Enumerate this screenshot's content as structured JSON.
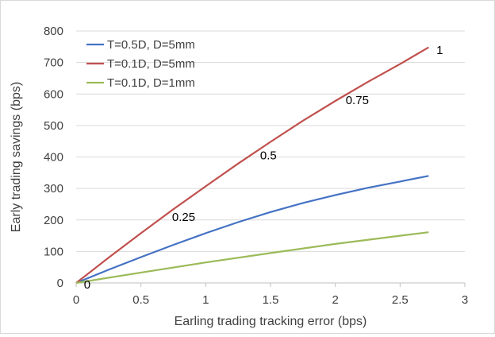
{
  "chart_data": {
    "type": "line",
    "title": "",
    "xlabel": "Earling trading tracking error (bps)",
    "ylabel": "Early trading savings (bps)",
    "xlim": [
      0,
      3
    ],
    "ylim": [
      0,
      800
    ],
    "xticks": [
      0,
      0.5,
      1,
      1.5,
      2,
      2.5,
      3
    ],
    "xtick_labels": [
      "0",
      "0.5",
      "1",
      "1.5",
      "2",
      "2.5",
      "3"
    ],
    "yticks": [
      0,
      100,
      200,
      300,
      400,
      500,
      600,
      700,
      800
    ],
    "ytick_labels": [
      "0",
      "100",
      "200",
      "300",
      "400",
      "500",
      "600",
      "700",
      "800"
    ],
    "grid": "horizontal",
    "legend_position": "top-left",
    "series": [
      {
        "name": "T=0.5D, D=5mm",
        "color": "#4472C4",
        "x": [
          0,
          0.25,
          0.5,
          0.75,
          1.0,
          1.25,
          1.5,
          1.75,
          2.0,
          2.25,
          2.5,
          2.72
        ],
        "y": [
          0,
          42,
          82,
          121,
          158,
          193,
          225,
          254,
          279,
          302,
          322,
          340
        ]
      },
      {
        "name": "T=0.1D, D=5mm",
        "color": "#C0504D",
        "x": [
          0,
          0.25,
          0.5,
          0.75,
          1.0,
          1.25,
          1.5,
          1.75,
          2.0,
          2.25,
          2.5,
          2.72
        ],
        "y": [
          0,
          80,
          158,
          234,
          307,
          379,
          448,
          515,
          578,
          638,
          695,
          748
        ]
      },
      {
        "name": "T=0.1D, D=1mm",
        "color": "#9BBB59",
        "x": [
          0,
          0.5,
          1.0,
          1.5,
          2.0,
          2.5,
          2.72
        ],
        "y": [
          0,
          33,
          65,
          95,
          124,
          150,
          161
        ]
      }
    ],
    "annotations": [
      {
        "text": "0",
        "x": 0.06,
        "y": -5
      },
      {
        "text": "0.25",
        "x": 0.74,
        "y": 210
      },
      {
        "text": "0.5",
        "x": 1.42,
        "y": 405
      },
      {
        "text": "0.75",
        "x": 2.08,
        "y": 580
      },
      {
        "text": "1",
        "x": 2.78,
        "y": 740
      }
    ]
  }
}
